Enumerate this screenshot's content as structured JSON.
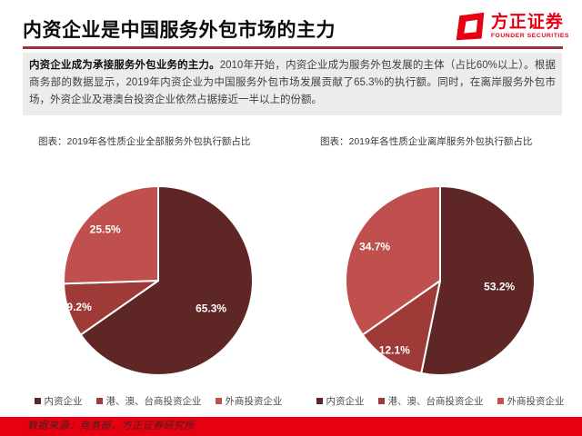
{
  "header": {
    "title": "内资企业是中国服务外包市场的主力",
    "logo": {
      "name_cn": "方正证券",
      "name_en": "FOUNDER SECURITIES",
      "brand_color": "#e60012"
    }
  },
  "summary": {
    "lead_bold": "内资企业成为承接服务外包业务的主力。",
    "body": "2010年开始，内资企业成为服务外包发展的主体（占比60%以上）。根据商务部的数据显示，2019年内资企业为中国服务外包市场发展贡献了65.3%的执行额。同时，在离岸服务外包市场，外资企业及港澳台投资企业依然占据接近一半以上的份额。"
  },
  "chart_data": [
    {
      "type": "pie",
      "title": "图表：2019年各性质企业全部服务外包执行额占比",
      "categories": [
        "内资企业",
        "港、澳、台商投资企业",
        "外商投资企业"
      ],
      "values": [
        65.3,
        9.2,
        25.5
      ],
      "data_labels": [
        "65.3%",
        "9.2%",
        "25.5%"
      ],
      "colors": [
        "#5f2626",
        "#9e3b39",
        "#c0504d"
      ],
      "start_angle_deg": 0,
      "direction": "clockwise",
      "legend_position": "bottom",
      "slice_border_color": "#ffffff"
    },
    {
      "type": "pie",
      "title": "图表：2019年各性质企业离岸服务外包执行额占比",
      "categories": [
        "内资企业",
        "港、澳、台商投资企业",
        "外商投资企业"
      ],
      "values": [
        53.2,
        12.1,
        34.7
      ],
      "data_labels": [
        "53.2%",
        "12.1%",
        "34.7%"
      ],
      "colors": [
        "#5f2626",
        "#9e3b39",
        "#c0504d"
      ],
      "start_angle_deg": 0,
      "direction": "clockwise",
      "legend_position": "bottom",
      "slice_border_color": "#ffffff"
    }
  ],
  "footer": {
    "source": "数据来源：商务部，方正证券研究所"
  }
}
